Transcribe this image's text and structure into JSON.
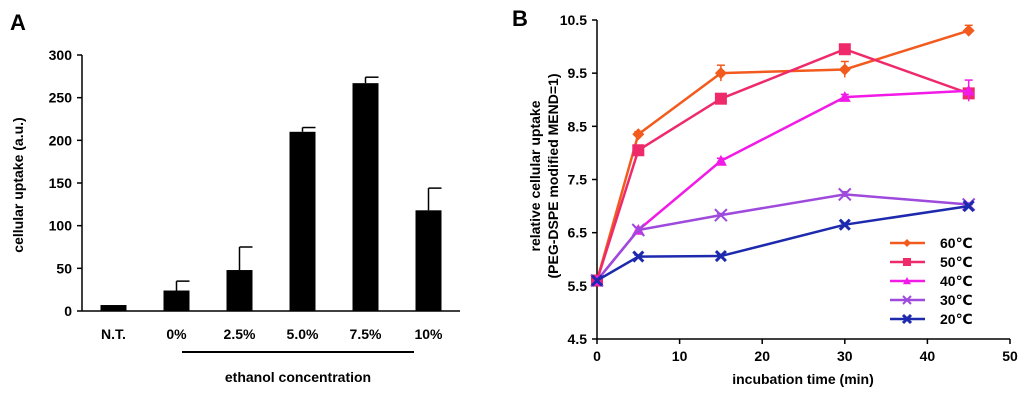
{
  "figure": {
    "panel_a_label": "A",
    "panel_b_label": "B"
  },
  "chart_data": [
    {
      "panel": "A",
      "type": "bar",
      "title": "",
      "xlabel": "ethanol concentration",
      "ylabel": "cellular uptake (a.u.)",
      "categories": [
        "N.T.",
        "0%",
        "2.5%",
        "5.0%",
        "7.5%",
        "10%"
      ],
      "values": [
        7,
        24,
        48,
        210,
        267,
        118
      ],
      "errors": [
        0,
        11,
        27,
        5,
        7,
        26
      ],
      "ylim": [
        0,
        300
      ],
      "yticks": [
        "0",
        "50",
        "100",
        "150",
        "200",
        "250",
        "300"
      ],
      "bar_color": "#000000",
      "grid": false
    },
    {
      "panel": "B",
      "type": "line",
      "title": "",
      "xlabel": "incubation time (min)",
      "ylabel": "relative cellular uptake",
      "ylabel2": "(PEG-DSPE modified MEND=1)",
      "xlim": [
        0,
        50
      ],
      "ylim": [
        4.5,
        10.5
      ],
      "xticks": [
        "0",
        "10",
        "20",
        "30",
        "40",
        "50"
      ],
      "yticks": [
        "4.5",
        "5.5",
        "6.5",
        "7.5",
        "8.5",
        "9.5",
        "10.5"
      ],
      "x": [
        0,
        5,
        15,
        30,
        45
      ],
      "legend_position": "bottom-right",
      "grid": false,
      "series": [
        {
          "name": "60℃",
          "color": "#F25A1E",
          "marker": "diamond",
          "values": [
            5.6,
            8.35,
            9.5,
            9.57,
            10.3
          ],
          "errors": [
            0,
            0.05,
            0.15,
            0.15,
            0.1
          ]
        },
        {
          "name": "50℃",
          "color": "#EE2A6B",
          "marker": "square",
          "values": [
            5.6,
            8.05,
            9.02,
            9.95,
            9.12
          ],
          "errors": [
            0,
            0.05,
            0.05,
            0.05,
            0.05
          ]
        },
        {
          "name": "40℃",
          "color": "#F21AE6",
          "marker": "triangle",
          "values": [
            5.6,
            6.55,
            7.85,
            9.05,
            9.17
          ],
          "errors": [
            0,
            0.05,
            0.05,
            0.05,
            0.2
          ]
        },
        {
          "name": "30℃",
          "color": "#9E4ADC",
          "marker": "x",
          "values": [
            5.6,
            6.55,
            6.83,
            7.22,
            7.03
          ],
          "errors": [
            0,
            0.05,
            0.03,
            0.05,
            0.03
          ]
        },
        {
          "name": "20℃",
          "color": "#1E2AAE",
          "marker": "bigx",
          "values": [
            5.6,
            6.05,
            6.06,
            6.65,
            7.0
          ],
          "errors": [
            0,
            0.03,
            0.03,
            0.03,
            0.03
          ]
        }
      ]
    }
  ]
}
